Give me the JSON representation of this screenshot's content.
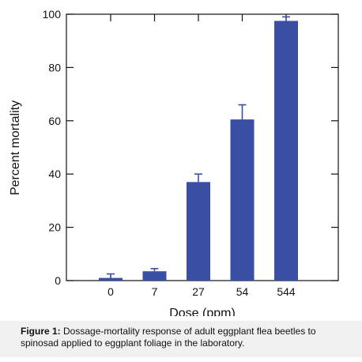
{
  "chart_data": {
    "type": "bar",
    "categories": [
      "0",
      "7",
      "27",
      "54",
      "544"
    ],
    "values": [
      1,
      3.5,
      37,
      60.5,
      97.5
    ],
    "error_upper": [
      2.5,
      4.5,
      40,
      66,
      99
    ],
    "xlabel": "Dose (ppm)",
    "ylabel": "Percent mortality",
    "ylim": [
      0,
      100
    ],
    "yticks": [
      0,
      20,
      40,
      60,
      80,
      100
    ],
    "grid": false,
    "bar_color": "#3a4fa3"
  },
  "caption": {
    "label": "Figure 1:",
    "text": " Dossage-mortality response of adult eggplant flea beetles to spinosad applied to eggplant foliage in the laboratory."
  }
}
